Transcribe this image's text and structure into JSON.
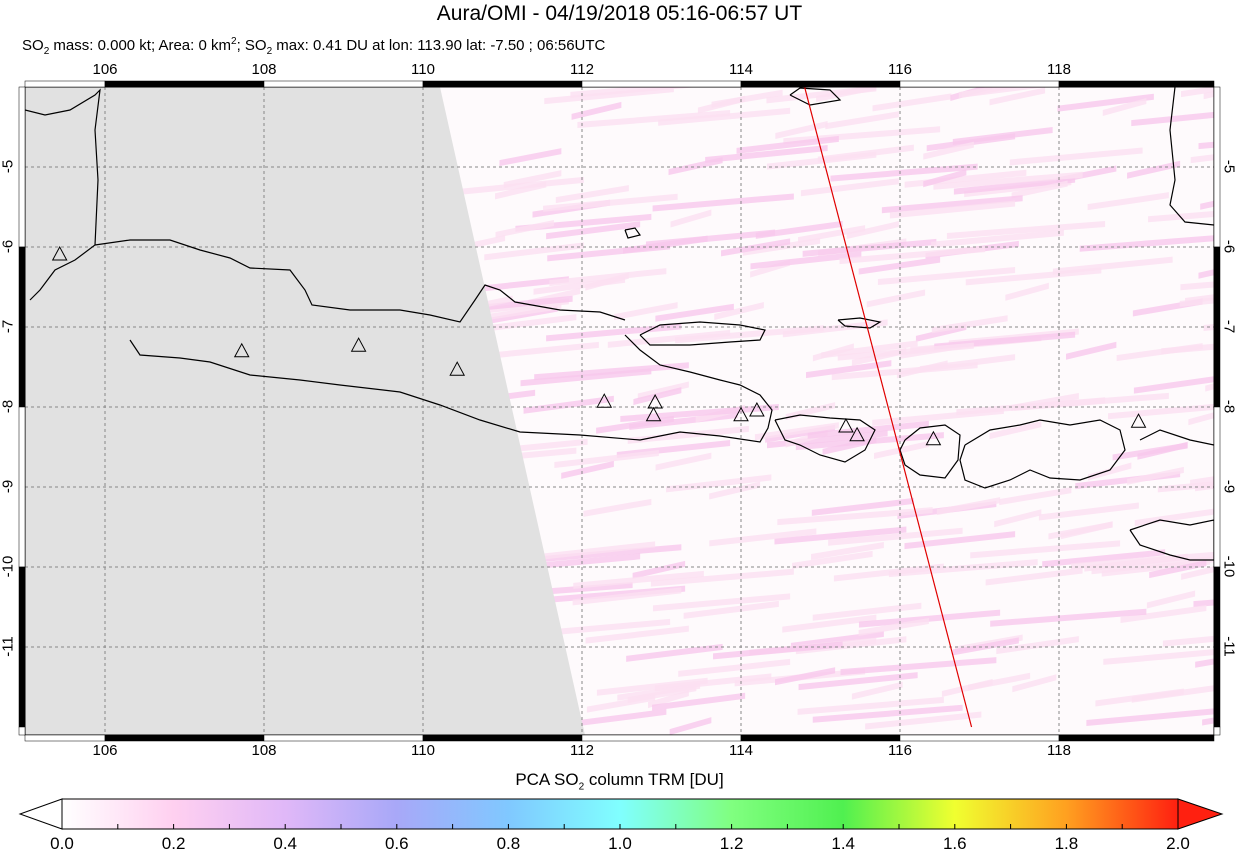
{
  "header": {
    "title": "Aura/OMI - 04/19/2018 05:16-06:57 UT",
    "subtitle_parts": [
      "SO",
      "2",
      " mass: 0.000 kt; Area: 0 km",
      "2",
      "; SO",
      "2",
      " max: 0.41 DU at lon: 113.90 lat: -7.50 ; 06:56UTC"
    ]
  },
  "map": {
    "lon_range": [
      105,
      120
    ],
    "lat_range": [
      -12.1,
      -4
    ],
    "lon_ticks": [
      "106",
      "108",
      "110",
      "112",
      "114",
      "116",
      "118"
    ],
    "lat_ticks": [
      "-5",
      "-6",
      "-7",
      "-8",
      "-9",
      "-10",
      "-11"
    ],
    "grid": "dashed",
    "no_data_color": "#e1e1e1",
    "orbit_track": {
      "color": "#e00000",
      "start": [
        114.8,
        -4.0
      ],
      "end": [
        116.9,
        -12.0
      ]
    },
    "volcanoes": [
      [
        105.43,
        -6.1
      ],
      [
        107.72,
        -7.31
      ],
      [
        109.19,
        -7.24
      ],
      [
        110.43,
        -7.54
      ],
      [
        112.28,
        -7.94
      ],
      [
        112.92,
        -7.95
      ],
      [
        112.9,
        -8.11
      ],
      [
        114.0,
        -8.11
      ],
      [
        114.2,
        -8.05
      ],
      [
        115.32,
        -8.25
      ],
      [
        115.46,
        -8.36
      ],
      [
        116.42,
        -8.41
      ],
      [
        119.0,
        -8.19
      ]
    ]
  },
  "colorbar": {
    "title_parts": [
      "PCA SO",
      "2",
      " column TRM [DU]"
    ],
    "ticks": [
      "0.0",
      "0.2",
      "0.4",
      "0.6",
      "0.8",
      "1.0",
      "1.2",
      "1.4",
      "1.6",
      "1.8",
      "2.0"
    ],
    "range": [
      0,
      2
    ],
    "colors": [
      "#ffffff",
      "#ffd0f0",
      "#e0b8f8",
      "#a8a8f8",
      "#80c8ff",
      "#80ffff",
      "#80ff80",
      "#50f050",
      "#f0ff30",
      "#ffa020",
      "#ff2010"
    ]
  }
}
